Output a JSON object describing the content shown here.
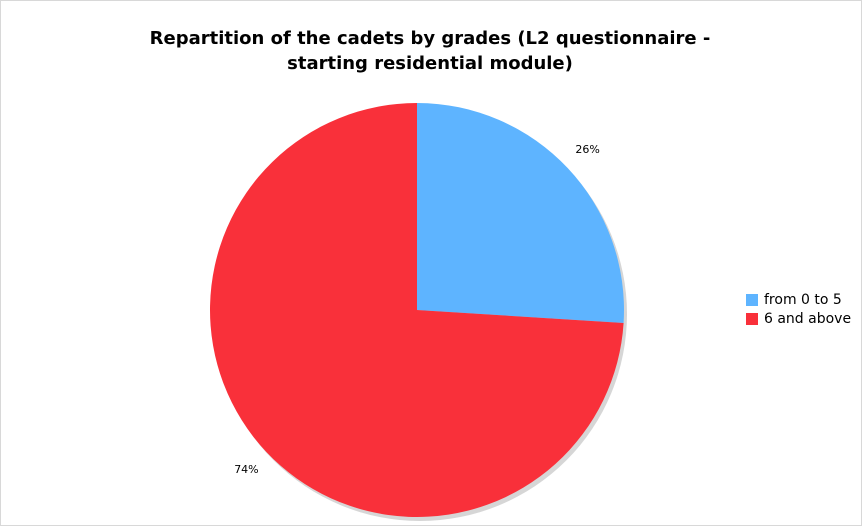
{
  "chart_data": {
    "type": "pie",
    "title": "Repartition of the cadets by grades (L2 questionnaire - starting residential module)",
    "categories": [
      "from 0 to 5",
      "6 and above"
    ],
    "values": [
      26,
      74
    ],
    "value_labels": [
      "26%",
      "74%"
    ],
    "colors": [
      "#5eb4ff",
      "#f9303a"
    ],
    "legend": "right"
  }
}
